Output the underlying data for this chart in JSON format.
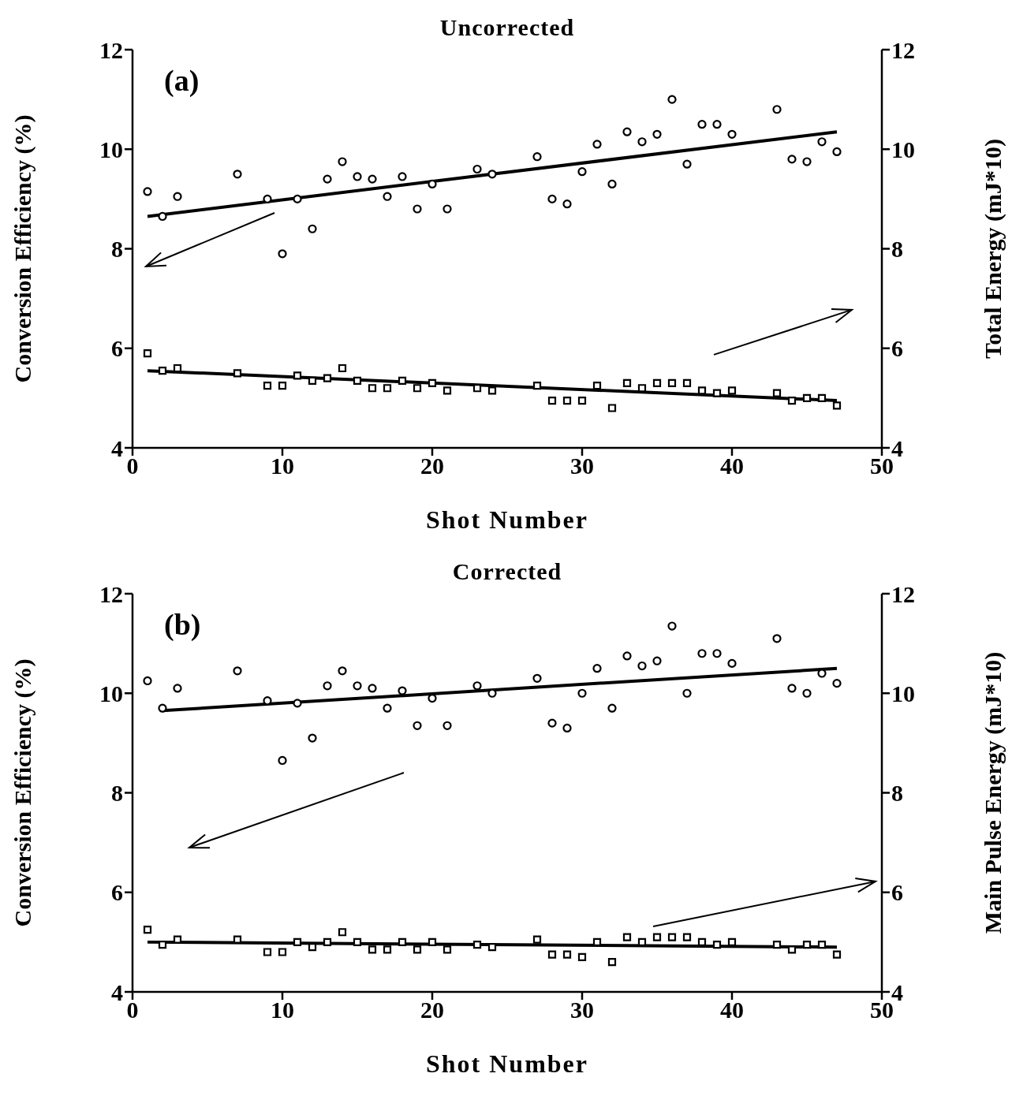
{
  "chart_data": [
    {
      "type": "scatter",
      "title": "Uncorrected",
      "xlabel": "Shot Number",
      "ylabel": "Conversion Efficiency (%)",
      "y2label": "Total Energy (mJ*10)",
      "annotations": [
        "(a)"
      ],
      "xlim": [
        0,
        50
      ],
      "xticks": [
        0,
        10,
        20,
        30,
        40,
        50
      ],
      "ylim": [
        4,
        12
      ],
      "yticks": [
        4,
        6,
        8,
        10,
        12
      ],
      "y2lim": [
        4,
        12
      ],
      "y2ticks": [
        4,
        6,
        8,
        10,
        12
      ],
      "grid": false,
      "legend": false,
      "x": [
        1,
        2,
        3,
        7,
        9,
        10,
        11,
        12,
        13,
        14,
        15,
        16,
        17,
        18,
        19,
        20,
        21,
        23,
        24,
        27,
        28,
        29,
        30,
        31,
        32,
        33,
        34,
        35,
        36,
        37,
        38,
        39,
        40,
        43,
        44,
        45,
        46,
        47
      ],
      "series": [
        {
          "type": "scatter",
          "marker": "circle",
          "color": "#000000",
          "axis": "y",
          "values": [
            9.15,
            8.65,
            9.05,
            9.5,
            9.0,
            7.9,
            9.0,
            8.4,
            9.4,
            9.75,
            9.45,
            9.4,
            9.05,
            9.45,
            8.8,
            9.3,
            8.8,
            9.6,
            9.5,
            9.85,
            9.0,
            8.9,
            9.55,
            10.1,
            9.3,
            10.35,
            10.15,
            10.3,
            11.0,
            9.7,
            10.5,
            10.5,
            10.3,
            10.8,
            9.8,
            9.75,
            10.15,
            9.95
          ]
        },
        {
          "type": "line",
          "color": "#000000",
          "axis": "y",
          "x": [
            1,
            47
          ],
          "values": [
            8.65,
            10.35
          ]
        },
        {
          "type": "scatter",
          "marker": "square",
          "color": "#000000",
          "axis": "y2",
          "values": [
            5.9,
            5.55,
            5.6,
            5.5,
            5.25,
            5.25,
            5.45,
            5.35,
            5.4,
            5.6,
            5.35,
            5.2,
            5.2,
            5.35,
            5.2,
            5.3,
            5.15,
            5.2,
            5.15,
            5.25,
            4.95,
            4.95,
            4.95,
            5.25,
            4.8,
            5.3,
            5.2,
            5.3,
            5.3,
            5.3,
            5.15,
            5.1,
            5.15,
            5.1,
            4.95,
            5.0,
            5.0,
            4.85
          ]
        },
        {
          "type": "line",
          "color": "#000000",
          "axis": "y2",
          "x": [
            1,
            47
          ],
          "values": [
            5.55,
            4.95
          ]
        }
      ]
    },
    {
      "type": "scatter",
      "title": "Corrected",
      "xlabel": "Shot Number",
      "ylabel": "Conversion Efficiency (%)",
      "y2label": "Main Pulse Energy (mJ*10)",
      "annotations": [
        "(b)"
      ],
      "xlim": [
        0,
        50
      ],
      "xticks": [
        0,
        10,
        20,
        30,
        40,
        50
      ],
      "ylim": [
        4,
        12
      ],
      "yticks": [
        4,
        6,
        8,
        10,
        12
      ],
      "y2lim": [
        4,
        12
      ],
      "y2ticks": [
        4,
        6,
        8,
        10,
        12
      ],
      "grid": false,
      "legend": false,
      "x": [
        1,
        2,
        3,
        7,
        9,
        10,
        11,
        12,
        13,
        14,
        15,
        16,
        17,
        18,
        19,
        20,
        21,
        23,
        24,
        27,
        28,
        29,
        30,
        31,
        32,
        33,
        34,
        35,
        36,
        37,
        38,
        39,
        40,
        43,
        44,
        45,
        46,
        47
      ],
      "series": [
        {
          "type": "scatter",
          "marker": "circle",
          "color": "#000000",
          "axis": "y",
          "values": [
            10.25,
            9.7,
            10.1,
            10.45,
            9.85,
            8.65,
            9.8,
            9.1,
            10.15,
            10.45,
            10.15,
            10.1,
            9.7,
            10.05,
            9.35,
            9.9,
            9.35,
            10.15,
            10.0,
            10.3,
            9.4,
            9.3,
            10.0,
            10.5,
            9.7,
            10.75,
            10.55,
            10.65,
            11.35,
            10.0,
            10.8,
            10.8,
            10.6,
            11.1,
            10.1,
            10.0,
            10.4,
            10.2
          ]
        },
        {
          "type": "line",
          "color": "#000000",
          "axis": "y",
          "x": [
            2,
            47
          ],
          "values": [
            9.65,
            10.5
          ]
        },
        {
          "type": "scatter",
          "marker": "square",
          "color": "#000000",
          "axis": "y2",
          "values": [
            5.25,
            4.95,
            5.05,
            5.05,
            4.8,
            4.8,
            5.0,
            4.9,
            5.0,
            5.2,
            5.0,
            4.85,
            4.85,
            5.0,
            4.85,
            5.0,
            4.85,
            4.95,
            4.9,
            5.05,
            4.75,
            4.75,
            4.7,
            5.0,
            4.6,
            5.1,
            5.0,
            5.1,
            5.1,
            5.1,
            5.0,
            4.95,
            5.0,
            4.95,
            4.85,
            4.95,
            4.95,
            4.75
          ]
        },
        {
          "type": "line",
          "color": "#000000",
          "axis": "y2",
          "x": [
            1,
            47
          ],
          "values": [
            5.0,
            4.9
          ]
        }
      ]
    }
  ]
}
